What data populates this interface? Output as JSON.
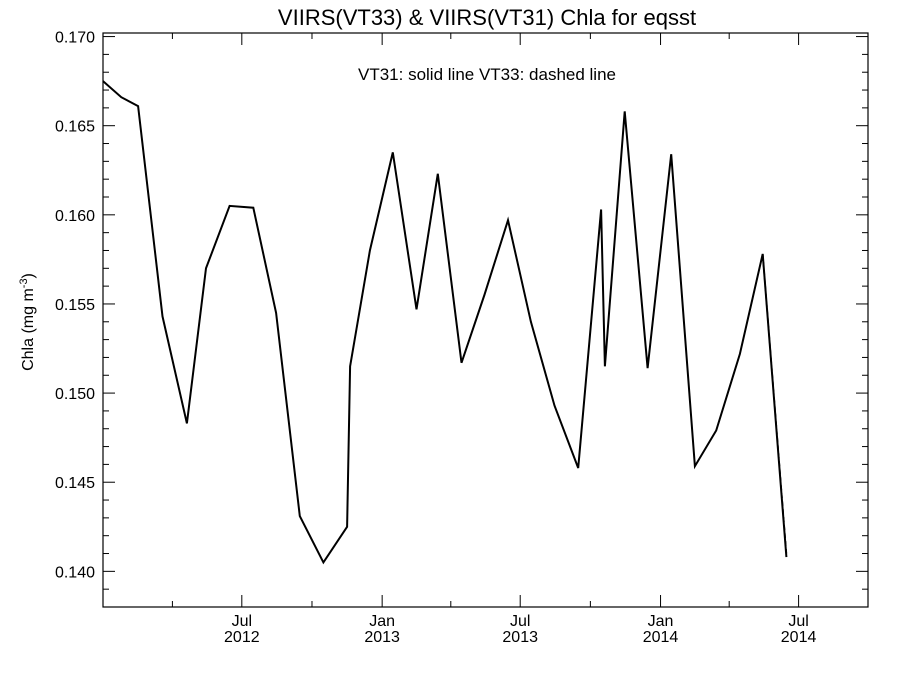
{
  "chart_data": {
    "type": "line",
    "title": "VIIRS(VT33) & VIIRS(VT31)  Chla for eqsst",
    "annotation": "VT31: solid line   VT33: dashed line",
    "xlabel": "",
    "ylabel_main": "Chla (mg m",
    "ylabel_exp": "-3",
    "ylabel_close": ")",
    "ylim": [
      0.138,
      0.1702
    ],
    "xlim": [
      "2012-01-01",
      "2014-09-30"
    ],
    "y_ticks": [
      {
        "value": 0.14,
        "label": "0.140"
      },
      {
        "value": 0.145,
        "label": "0.145"
      },
      {
        "value": 0.15,
        "label": "0.150"
      },
      {
        "value": 0.155,
        "label": "0.155"
      },
      {
        "value": 0.16,
        "label": "0.160"
      },
      {
        "value": 0.165,
        "label": "0.165"
      },
      {
        "value": 0.17,
        "label": "0.170"
      }
    ],
    "x_ticks": [
      {
        "date": "2012-07-01",
        "month": "Jul",
        "year": "2012"
      },
      {
        "date": "2013-01-01",
        "month": "Jan",
        "year": "2013"
      },
      {
        "date": "2013-07-01",
        "month": "Jul",
        "year": "2013"
      },
      {
        "date": "2014-01-01",
        "month": "Jan",
        "year": "2014"
      },
      {
        "date": "2014-07-01",
        "month": "Jul",
        "year": "2014"
      }
    ],
    "grid": false,
    "series": [
      {
        "name": "VT31",
        "style": "solid",
        "color": "#000000",
        "points": [
          {
            "x": "2012-01-01",
            "y": 0.1675
          },
          {
            "x": "2012-01-25",
            "y": 0.1666
          },
          {
            "x": "2012-02-16",
            "y": 0.1661
          },
          {
            "x": "2012-03-19",
            "y": 0.1543
          },
          {
            "x": "2012-04-20",
            "y": 0.1483
          },
          {
            "x": "2012-05-15",
            "y": 0.157
          },
          {
            "x": "2012-06-15",
            "y": 0.1605
          },
          {
            "x": "2012-07-16",
            "y": 0.1604
          },
          {
            "x": "2012-08-15",
            "y": 0.1545
          },
          {
            "x": "2012-09-15",
            "y": 0.1431
          },
          {
            "x": "2012-10-16",
            "y": 0.1405
          },
          {
            "x": "2012-11-16",
            "y": 0.1425
          },
          {
            "x": "2012-11-20",
            "y": 0.1515
          },
          {
            "x": "2012-12-16",
            "y": 0.158
          },
          {
            "x": "2013-01-15",
            "y": 0.1635
          },
          {
            "x": "2013-02-15",
            "y": 0.1547
          },
          {
            "x": "2013-03-15",
            "y": 0.1623
          },
          {
            "x": "2013-04-15",
            "y": 0.1517
          },
          {
            "x": "2013-05-15",
            "y": 0.1555
          },
          {
            "x": "2013-06-15",
            "y": 0.1597
          },
          {
            "x": "2013-07-15",
            "y": 0.154
          },
          {
            "x": "2013-08-15",
            "y": 0.1493
          },
          {
            "x": "2013-09-15",
            "y": 0.1458
          },
          {
            "x": "2013-10-15",
            "y": 0.1603
          },
          {
            "x": "2013-10-20",
            "y": 0.1515
          },
          {
            "x": "2013-11-15",
            "y": 0.1658
          },
          {
            "x": "2013-12-15",
            "y": 0.1514
          },
          {
            "x": "2014-01-15",
            "y": 0.1634
          },
          {
            "x": "2014-02-15",
            "y": 0.1459
          },
          {
            "x": "2014-03-15",
            "y": 0.1479
          },
          {
            "x": "2014-04-15",
            "y": 0.1522
          },
          {
            "x": "2014-05-15",
            "y": 0.1578
          },
          {
            "x": "2014-06-15",
            "y": 0.1408
          }
        ]
      },
      {
        "name": "VT33",
        "style": "dashed",
        "color": "#000000",
        "points": [
          {
            "x": "2014-05-15",
            "y": 0.1578
          },
          {
            "x": "2014-06-15",
            "y": 0.141
          }
        ]
      }
    ]
  }
}
